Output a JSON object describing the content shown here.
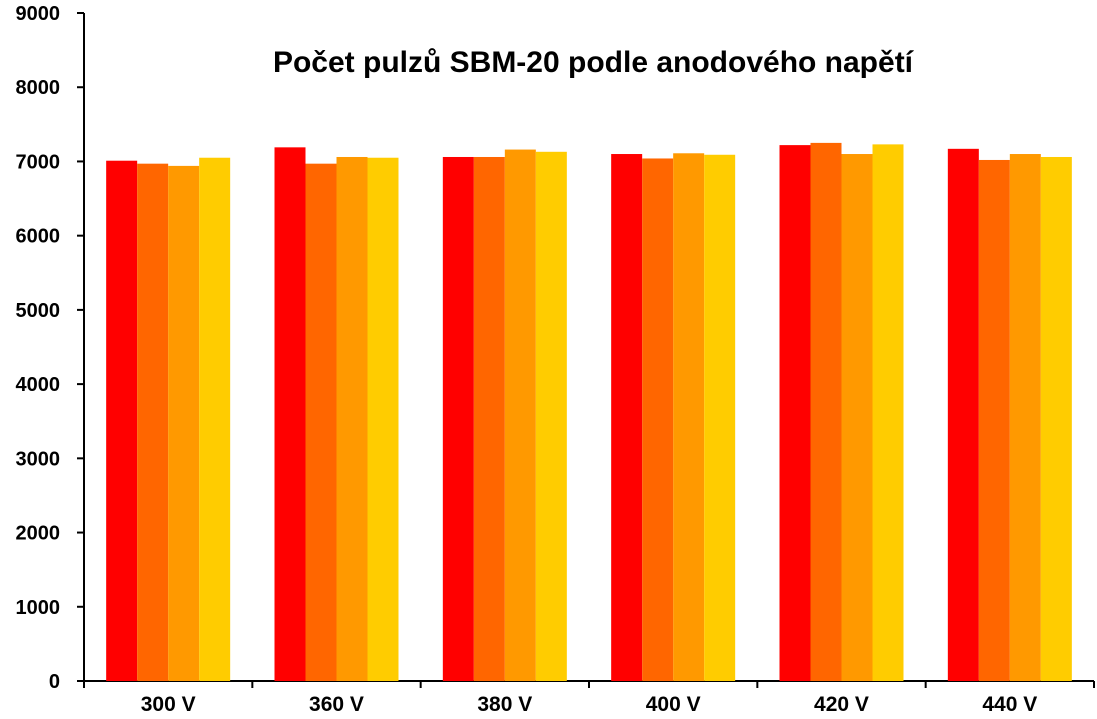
{
  "chart_data": {
    "type": "bar",
    "title": "Počet pulzů SBM-20 podle anodového napětí",
    "xlabel": "",
    "ylabel": "",
    "ylim": [
      0,
      9000
    ],
    "y_ticks": [
      "0",
      "1000",
      "2000",
      "3000",
      "4000",
      "5000",
      "6000",
      "7000",
      "8000",
      "9000"
    ],
    "categories": [
      "300 V",
      "360 V",
      "380 V",
      "400 V",
      "420 V",
      "440 V"
    ],
    "grid": false,
    "legend": "none",
    "series": [
      {
        "color": "#ff0000",
        "values": [
          7010,
          7190,
          7060,
          7100,
          7220,
          7170
        ]
      },
      {
        "color": "#ff6600",
        "values": [
          6970,
          6970,
          7060,
          7040,
          7250,
          7020
        ]
      },
      {
        "color": "#ff9900",
        "values": [
          6940,
          7060,
          7160,
          7110,
          7100,
          7100
        ]
      },
      {
        "color": "#ffcc00",
        "values": [
          7050,
          7050,
          7130,
          7090,
          7230,
          7060
        ]
      }
    ]
  }
}
